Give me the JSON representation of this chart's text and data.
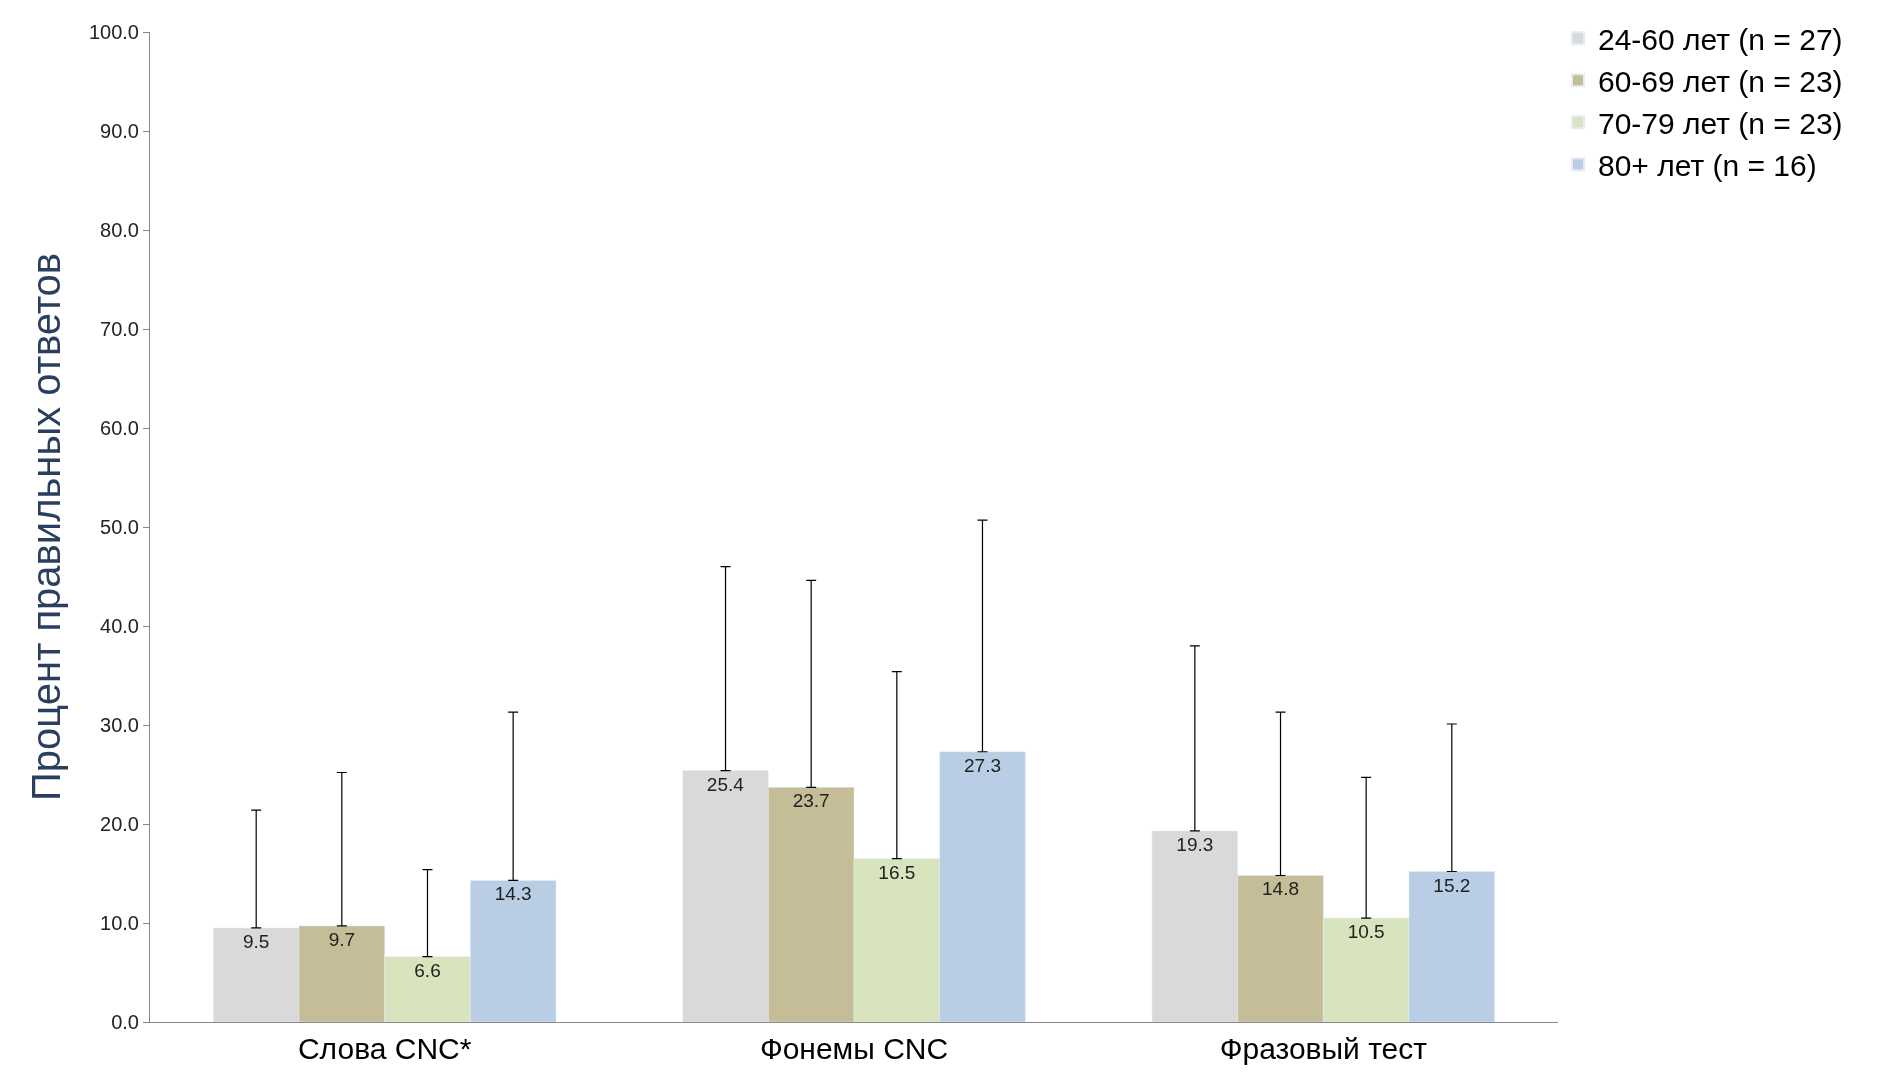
{
  "chart_data": {
    "type": "bar",
    "ylabel": "Процент правильных ответов",
    "categories": [
      "Слова CNC*",
      "Фонемы CNC",
      "Фразовый тест"
    ],
    "series": [
      {
        "name": "24-60 лет (n = 27)",
        "color": "#d9d9d9",
        "values": [
          9.5,
          25.4,
          19.3
        ],
        "errors": [
          [
            9.5,
            21.4
          ],
          [
            25.4,
            46.0
          ],
          [
            19.3,
            38.0
          ]
        ]
      },
      {
        "name": "60-69 лет (n = 23)",
        "color": "#c4bd97",
        "values": [
          9.7,
          23.7,
          14.8
        ],
        "errors": [
          [
            9.7,
            25.2
          ],
          [
            23.7,
            44.6
          ],
          [
            14.8,
            31.3
          ]
        ]
      },
      {
        "name": "70-79 лет (n = 23)",
        "color": "#d7e4bd",
        "values": [
          6.6,
          16.5,
          10.5
        ],
        "errors": [
          [
            6.6,
            15.4
          ],
          [
            16.5,
            35.4
          ],
          [
            10.5,
            24.7
          ]
        ]
      },
      {
        "name": "80+ лет (n = 16)",
        "color": "#b9cde5",
        "values": [
          14.3,
          27.3,
          15.2
        ],
        "errors": [
          [
            14.3,
            31.3
          ],
          [
            27.3,
            50.7
          ],
          [
            15.2,
            30.1
          ]
        ]
      }
    ],
    "ylim": [
      0,
      100
    ],
    "yticks": [
      {
        "value": 0,
        "label": "0.0"
      },
      {
        "value": 10,
        "label": "10.0"
      },
      {
        "value": 20,
        "label": "20.0"
      },
      {
        "value": 30,
        "label": "30.0"
      },
      {
        "value": 40,
        "label": "40.0"
      },
      {
        "value": 50,
        "label": "50.0"
      },
      {
        "value": 60,
        "label": "60.0"
      },
      {
        "value": 70,
        "label": "70.0"
      },
      {
        "value": 80,
        "label": "80.0"
      },
      {
        "value": 90,
        "label": "90.0"
      },
      {
        "value": 100,
        "label": "100.0"
      }
    ],
    "data_labels": true,
    "legend": "top right"
  }
}
